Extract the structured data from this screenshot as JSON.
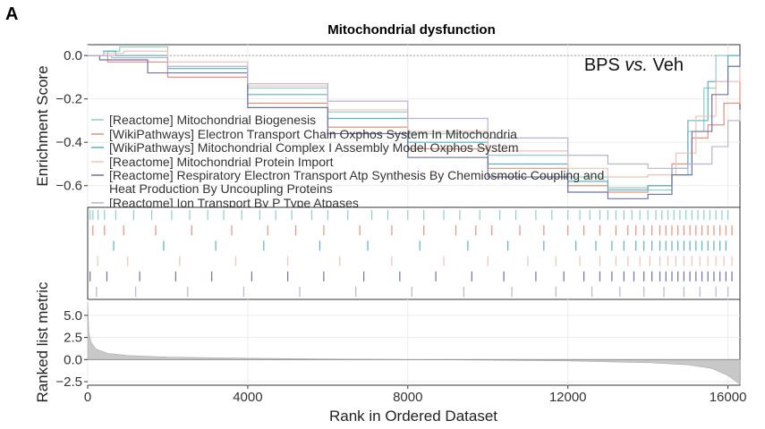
{
  "figure": {
    "panel_letter": "A",
    "title": "Mitochondrial dysfunction",
    "annotation_prefix": "BPS ",
    "annotation_italic": "vs.",
    "annotation_suffix": " Veh",
    "colors": {
      "background": "#ffffff",
      "grid": "#ececec",
      "rank_fill": "#c8c8c8",
      "axis": "#333333"
    }
  },
  "chart_data": [
    {
      "type": "line",
      "role": "running enrichment score",
      "ylabel": "Enrichment Score",
      "xlim": [
        0,
        16300
      ],
      "ylim": [
        -0.7,
        0.05
      ],
      "yticks": [
        0.0,
        -0.2,
        -0.4,
        -0.6
      ],
      "ytick_labels": [
        "0.0",
        "−0.2",
        "−0.4",
        "−0.6"
      ],
      "grid": true,
      "legend_position": "lower-left",
      "series": [
        {
          "name": "[Reactome] Mitochondrial Biogenesis",
          "color": "#8ecfc4",
          "points": [
            [
              0,
              0
            ],
            [
              500,
              0.02
            ],
            [
              800,
              0.04
            ],
            [
              2000,
              -0.03
            ],
            [
              4000,
              -0.15
            ],
            [
              6000,
              -0.26
            ],
            [
              8000,
              -0.36
            ],
            [
              10000,
              -0.46
            ],
            [
              12000,
              -0.56
            ],
            [
              13000,
              -0.61
            ],
            [
              14000,
              -0.62
            ],
            [
              14600,
              -0.55
            ],
            [
              15000,
              -0.35
            ],
            [
              15400,
              -0.15
            ],
            [
              15700,
              0.0
            ],
            [
              16300,
              0.0
            ]
          ]
        },
        {
          "name": "[WikiPathways] Electron Transport Chain Oxphos System In Mitochondria",
          "color": "#e8907c",
          "points": [
            [
              0,
              0
            ],
            [
              500,
              -0.03
            ],
            [
              2000,
              -0.1
            ],
            [
              4000,
              -0.22
            ],
            [
              6000,
              -0.33
            ],
            [
              8000,
              -0.43
            ],
            [
              10000,
              -0.52
            ],
            [
              12000,
              -0.6
            ],
            [
              13000,
              -0.63
            ],
            [
              14000,
              -0.6
            ],
            [
              14600,
              -0.5
            ],
            [
              15100,
              -0.38
            ],
            [
              15500,
              -0.32
            ],
            [
              15900,
              -0.22
            ],
            [
              16300,
              -0.1
            ]
          ]
        },
        {
          "name": "[WikiPathways] Mitochondrial Complex I Assembly Model Oxphos System",
          "color": "#5fb0c2",
          "points": [
            [
              0,
              0
            ],
            [
              400,
              0.02
            ],
            [
              700,
              0.0
            ],
            [
              2000,
              -0.06
            ],
            [
              4000,
              -0.18
            ],
            [
              6000,
              -0.29
            ],
            [
              8000,
              -0.4
            ],
            [
              10000,
              -0.5
            ],
            [
              12000,
              -0.58
            ],
            [
              13000,
              -0.62
            ],
            [
              14000,
              -0.6
            ],
            [
              14600,
              -0.52
            ],
            [
              15000,
              -0.3
            ],
            [
              15500,
              -0.12
            ],
            [
              16000,
              0.0
            ],
            [
              16300,
              0.0
            ]
          ]
        },
        {
          "name": "[Reactome] Mitochondrial Protein Import",
          "color": "#f3c2b6",
          "points": [
            [
              0,
              0
            ],
            [
              400,
              0.01
            ],
            [
              900,
              0.02
            ],
            [
              2000,
              -0.03
            ],
            [
              4000,
              -0.14
            ],
            [
              6000,
              -0.25
            ],
            [
              8000,
              -0.35
            ],
            [
              10000,
              -0.44
            ],
            [
              12000,
              -0.52
            ],
            [
              13000,
              -0.56
            ],
            [
              14000,
              -0.55
            ],
            [
              14700,
              -0.45
            ],
            [
              15200,
              -0.28
            ],
            [
              15700,
              -0.12
            ],
            [
              16300,
              -0.05
            ]
          ]
        },
        {
          "name": "[Reactome] Respiratory Electron Transport Atp Synthesis By Chemiosmotic Coupling and Heat Production By Uncoupling Proteins",
          "color": "#6e73a8",
          "points": [
            [
              0,
              0
            ],
            [
              300,
              -0.02
            ],
            [
              1500,
              -0.08
            ],
            [
              4000,
              -0.24
            ],
            [
              6000,
              -0.36
            ],
            [
              8000,
              -0.47
            ],
            [
              10000,
              -0.56
            ],
            [
              12000,
              -0.63
            ],
            [
              13000,
              -0.66
            ],
            [
              14000,
              -0.64
            ],
            [
              14600,
              -0.55
            ],
            [
              15100,
              -0.35
            ],
            [
              15600,
              -0.18
            ],
            [
              16000,
              -0.05
            ],
            [
              16300,
              0.0
            ]
          ]
        },
        {
          "name": "[Reactome] Ion Transport By P Type Atpases",
          "color": "#b7b3d6",
          "points": [
            [
              0,
              0
            ],
            [
              600,
              -0.01
            ],
            [
              2000,
              -0.05
            ],
            [
              4000,
              -0.13
            ],
            [
              6000,
              -0.21
            ],
            [
              8000,
              -0.29
            ],
            [
              10000,
              -0.38
            ],
            [
              12000,
              -0.46
            ],
            [
              13000,
              -0.5
            ],
            [
              14000,
              -0.52
            ],
            [
              15000,
              -0.5
            ],
            [
              15600,
              -0.42
            ],
            [
              16000,
              -0.3
            ],
            [
              16300,
              -0.25
            ]
          ]
        }
      ]
    },
    {
      "type": "scatter",
      "role": "gene hit positions (one row per gene set, same order as legend)",
      "xlim": [
        0,
        16300
      ],
      "rows": [
        {
          "color": "#8ecfc4",
          "positions": [
            60,
            130,
            260,
            420,
            700,
            1150,
            1600,
            2100,
            2550,
            3000,
            3400,
            3850,
            4300,
            4700,
            5100,
            5600,
            6000,
            6500,
            7100,
            7500,
            8000,
            8400,
            8900,
            9300,
            9800,
            10300,
            10700,
            11200,
            11600,
            12000,
            12300,
            12550,
            12800,
            13000,
            13200,
            13400,
            13600,
            13800,
            14000,
            14200,
            14350,
            14500,
            14650,
            14800,
            14950,
            15100,
            15250,
            15400,
            15550,
            15700,
            15850,
            16000
          ]
        },
        {
          "color": "#e8907c",
          "positions": [
            130,
            420,
            900,
            1700,
            2600,
            3600,
            4500,
            5200,
            5900,
            6800,
            7600,
            8400,
            9200,
            9700,
            10100,
            10800,
            11400,
            12000,
            12400,
            12800,
            13200,
            13500,
            13700,
            13900,
            14100,
            14300,
            14450,
            14600,
            14750,
            14900,
            15050,
            15200,
            15350,
            15500,
            15650,
            15800,
            15950,
            16100
          ]
        },
        {
          "color": "#5fb0c2",
          "positions": [
            650,
            1900,
            3200,
            4400,
            5800,
            7000,
            8300,
            9500,
            10500,
            11400,
            12200,
            12700,
            13100,
            13400,
            13700,
            13900,
            14100,
            14300,
            14450,
            14600,
            14750,
            14900,
            15050,
            15200,
            15350,
            15500,
            15650,
            15800,
            15950
          ]
        },
        {
          "color": "#f3c2b6",
          "positions": [
            250,
            1000,
            2300,
            3700,
            5000,
            6300,
            7600,
            8900,
            10000,
            11000,
            11700,
            12300,
            12800,
            13200,
            13500,
            13800,
            14050,
            14300,
            14500,
            14700,
            14900,
            15100,
            15300,
            15500,
            15700,
            15900,
            16100
          ]
        },
        {
          "color": "#6e73a8",
          "positions": [
            60,
            480,
            1300,
            2200,
            3100,
            4100,
            5000,
            5900,
            6900,
            7800,
            8700,
            9600,
            10400,
            11200,
            11900,
            12400,
            12800,
            13100,
            13400,
            13650,
            13900,
            14100,
            14300,
            14450,
            14600,
            14750,
            14900,
            15050,
            15200,
            15350,
            15500,
            15650,
            15800,
            15950,
            16100
          ]
        },
        {
          "color": "#b7b3d6",
          "positions": [
            220,
            1200,
            2500,
            3900,
            5300,
            6700,
            8100,
            9400,
            10600,
            11700,
            12600,
            13300,
            13900,
            14400,
            14900,
            15300,
            15700,
            16000
          ]
        }
      ]
    },
    {
      "type": "area",
      "role": "ranked list metric",
      "ylabel": "Ranked list metric",
      "xlabel": "Rank in Ordered Dataset",
      "xlim": [
        0,
        16300
      ],
      "ylim": [
        -2.9,
        6.8
      ],
      "yticks": [
        5.0,
        2.5,
        0.0,
        -2.5
      ],
      "ytick_labels": [
        "5.0",
        "2.5",
        "0.0",
        "−2.5"
      ],
      "xticks": [
        0,
        4000,
        8000,
        12000,
        16000
      ],
      "xtick_labels": [
        "0",
        "4000",
        "8000",
        "12000",
        "16000"
      ],
      "grid": true,
      "points": [
        [
          0,
          6.5
        ],
        [
          30,
          3.0
        ],
        [
          80,
          2.0
        ],
        [
          200,
          1.2
        ],
        [
          500,
          0.7
        ],
        [
          1000,
          0.45
        ],
        [
          2000,
          0.28
        ],
        [
          4000,
          0.15
        ],
        [
          6000,
          0.06
        ],
        [
          8000,
          0.0
        ],
        [
          10000,
          -0.06
        ],
        [
          12000,
          -0.15
        ],
        [
          14000,
          -0.35
        ],
        [
          15000,
          -0.6
        ],
        [
          15600,
          -1.0
        ],
        [
          16000,
          -1.8
        ],
        [
          16300,
          -2.8
        ]
      ]
    }
  ]
}
